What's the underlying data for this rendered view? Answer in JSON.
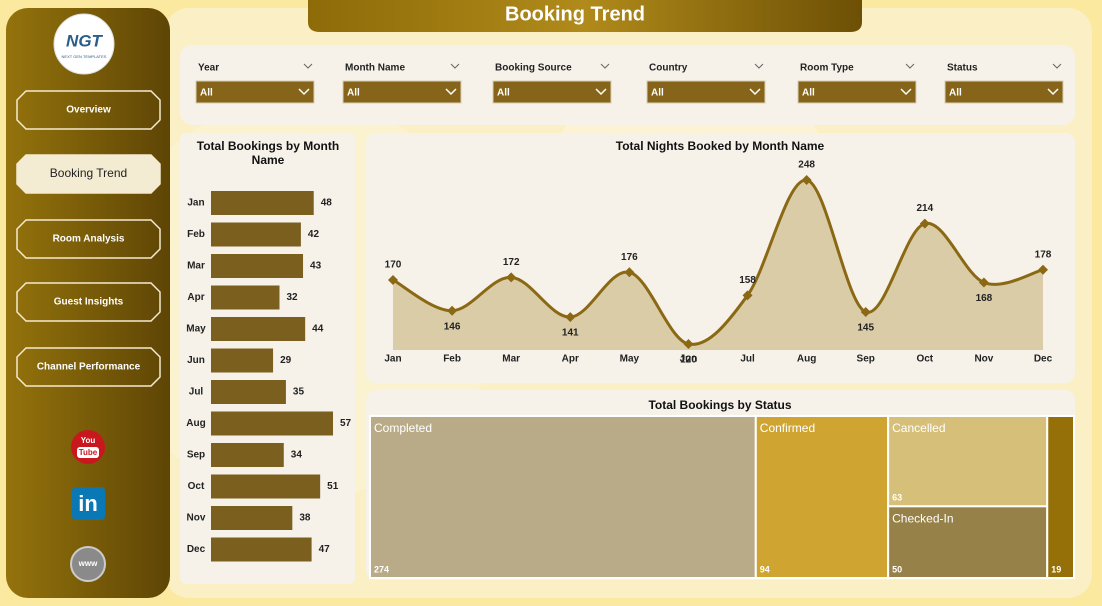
{
  "header": {
    "title": "Booking Trend"
  },
  "logo": {
    "text": "NGT",
    "tagline": "NEXT GEN TEMPLATES"
  },
  "nav": [
    {
      "label": "Overview",
      "active": false
    },
    {
      "label": "Booking Trend",
      "active": true
    },
    {
      "label": "Room Analysis",
      "active": false
    },
    {
      "label": "Guest Insights",
      "active": false
    },
    {
      "label": "Channel Performance",
      "active": false
    }
  ],
  "filters": [
    {
      "label": "Year",
      "value": "All"
    },
    {
      "label": "Month Name",
      "value": "All"
    },
    {
      "label": "Booking Source",
      "value": "All"
    },
    {
      "label": "Country",
      "value": "All"
    },
    {
      "label": "Room Type",
      "value": "All"
    },
    {
      "label": "Status",
      "value": "All"
    }
  ],
  "icons": {
    "youtube": [
      "You",
      "Tube"
    ],
    "linkedin": "in",
    "web": "www"
  },
  "chart_data": [
    {
      "type": "bar",
      "orientation": "horizontal",
      "title": "Total Bookings by Month Name",
      "categories": [
        "Jan",
        "Feb",
        "Mar",
        "Apr",
        "May",
        "Jun",
        "Jul",
        "Aug",
        "Sep",
        "Oct",
        "Nov",
        "Dec"
      ],
      "values": [
        48,
        42,
        43,
        32,
        44,
        29,
        35,
        57,
        34,
        51,
        38,
        47
      ],
      "color": "#7b5f1e"
    },
    {
      "type": "area",
      "title": "Total Nights Booked by Month Name",
      "categories": [
        "Jan",
        "Feb",
        "Mar",
        "Apr",
        "May",
        "Jun",
        "Jul",
        "Aug",
        "Sep",
        "Oct",
        "Nov",
        "Dec"
      ],
      "values": [
        170,
        146,
        172,
        141,
        176,
        120,
        158,
        248,
        145,
        214,
        168,
        178
      ],
      "color": "#8b6914",
      "fill": "#d6c69c"
    },
    {
      "type": "treemap",
      "title": "Total Bookings by Status",
      "categories": [
        "Completed",
        "Confirmed",
        "Cancelled",
        "Checked-In",
        null
      ],
      "values": [
        274,
        94,
        63,
        50,
        19
      ],
      "colors": [
        "#b9ab88",
        "#cfa431",
        "#d6bf78",
        "#968148",
        "#957008"
      ]
    }
  ]
}
